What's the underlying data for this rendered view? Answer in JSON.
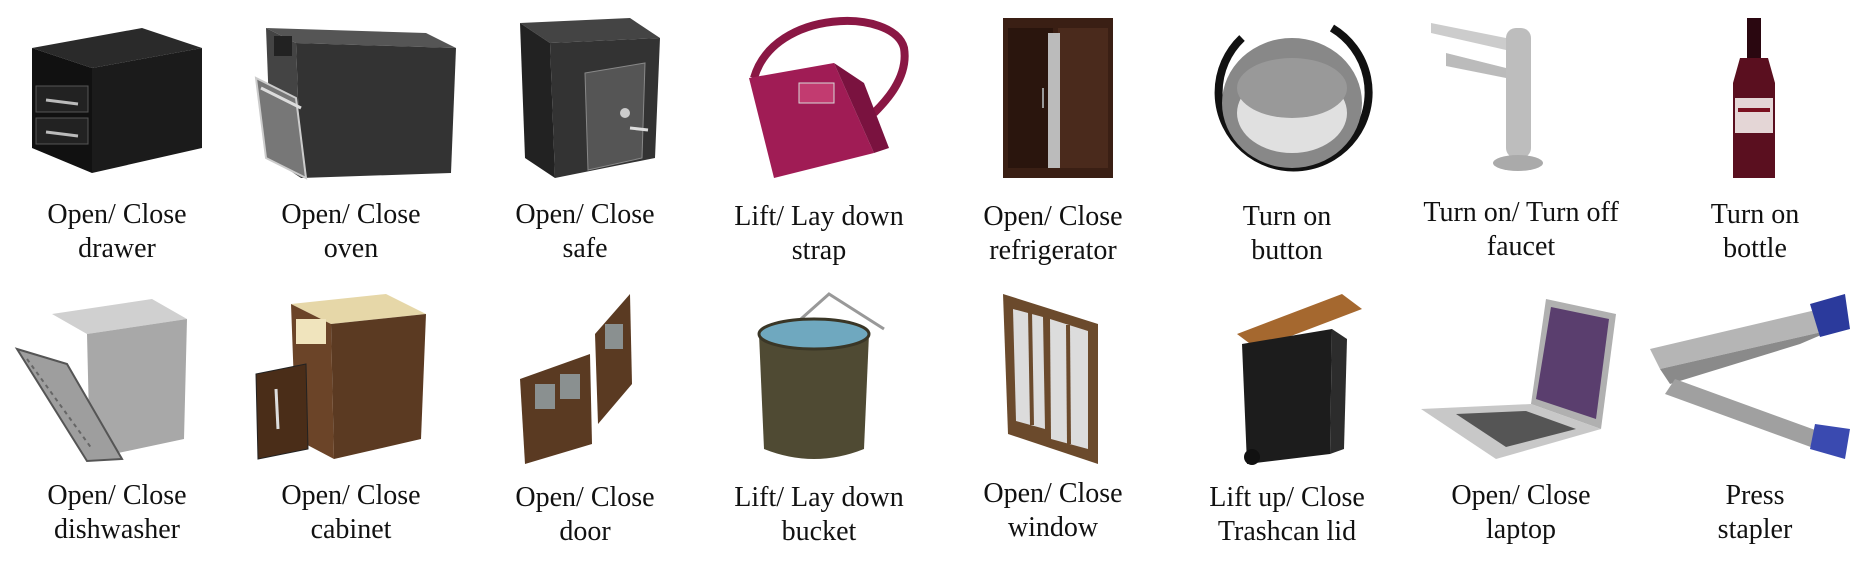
{
  "items": [
    {
      "icon": "drawer-icon",
      "action": "Open/ Close",
      "object": "drawer"
    },
    {
      "icon": "oven-icon",
      "action": "Open/ Close",
      "object": "oven"
    },
    {
      "icon": "safe-icon",
      "action": "Open/ Close",
      "object": "safe"
    },
    {
      "icon": "handbag-strap-icon",
      "action": "Lift/ Lay down",
      "object": "strap"
    },
    {
      "icon": "refrigerator-icon",
      "action": "Open/ Close",
      "object": "refrigerator"
    },
    {
      "icon": "round-button-icon",
      "action": "Turn on",
      "object": "button"
    },
    {
      "icon": "faucet-icon",
      "action": "Turn on/ Turn off",
      "object": "faucet"
    },
    {
      "icon": "bottle-icon",
      "action": "Turn on",
      "object": "bottle"
    },
    {
      "icon": "dishwasher-icon",
      "action": "Open/ Close",
      "object": "dishwasher"
    },
    {
      "icon": "cabinet-icon",
      "action": "Open/ Close",
      "object": "cabinet"
    },
    {
      "icon": "door-icon",
      "action": "Open/ Close",
      "object": "door"
    },
    {
      "icon": "bucket-icon",
      "action": "Lift/ Lay down",
      "object": "bucket"
    },
    {
      "icon": "window-icon",
      "action": "Open/ Close",
      "object": "window"
    },
    {
      "icon": "trashcan-icon",
      "action": "Lift up/ Close",
      "object": "Trashcan lid"
    },
    {
      "icon": "laptop-icon",
      "action": "Open/ Close",
      "object": "laptop"
    },
    {
      "icon": "stapler-icon",
      "action": "Press",
      "object": "stapler"
    }
  ]
}
